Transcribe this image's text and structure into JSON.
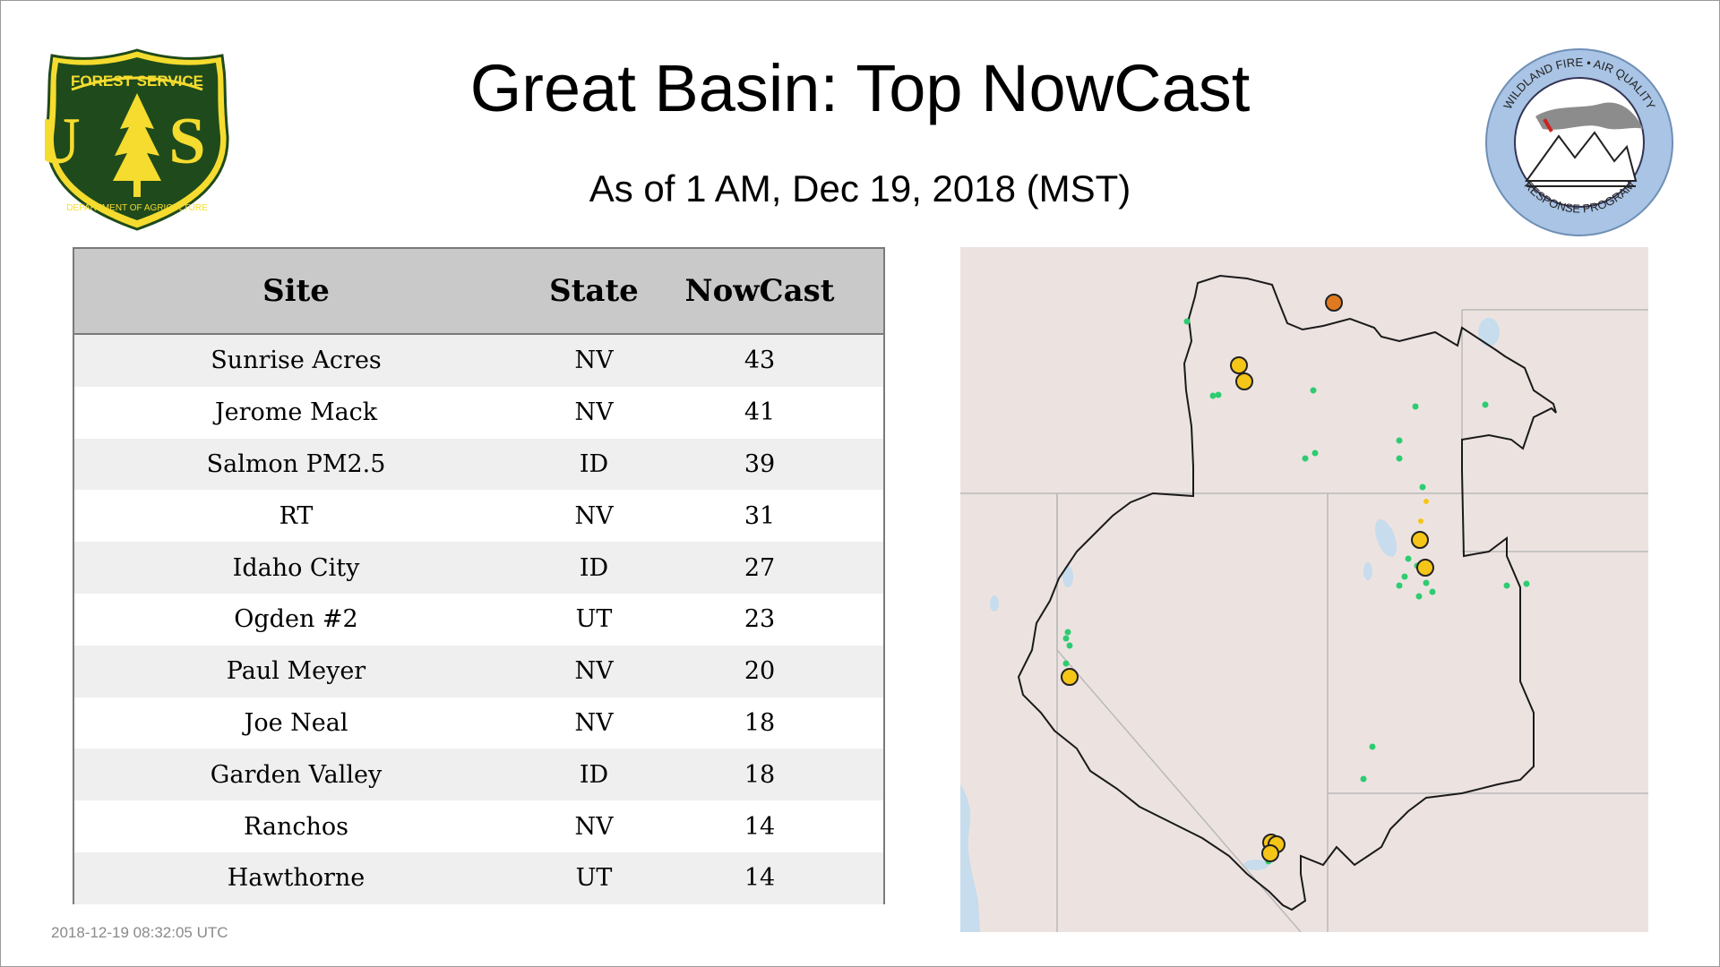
{
  "header": {
    "title": "Great Basin: Top NowCast",
    "subtitle": "As of  1 AM, Dec 19, 2018 (MST)"
  },
  "logos": {
    "forest_service": {
      "top_text": "FOREST SERVICE",
      "letters": "U S",
      "bottom_text": "DEPARTMENT OF AGRICULTURE",
      "colors": {
        "shield": "#1f4a1c",
        "gold": "#f5dc2e"
      }
    },
    "wildland_fire": {
      "top_text": "WILDLAND FIRE • AIR QUALITY",
      "bottom_text": "RESPONSE PROGRAM",
      "colors": {
        "ring": "#a9c4e4",
        "smoke": "#8c8c8c",
        "flag": "#cc2222"
      }
    }
  },
  "table": {
    "columns": [
      "Site",
      "State",
      "NowCast"
    ],
    "rows": [
      {
        "site": "Sunrise Acres",
        "state": "NV",
        "nowcast": "43"
      },
      {
        "site": "Jerome Mack",
        "state": "NV",
        "nowcast": "41"
      },
      {
        "site": "Salmon PM2.5",
        "state": "ID",
        "nowcast": "39"
      },
      {
        "site": "RT",
        "state": "NV",
        "nowcast": "31"
      },
      {
        "site": "Idaho City",
        "state": "ID",
        "nowcast": "27"
      },
      {
        "site": "Ogden #2",
        "state": "UT",
        "nowcast": "23"
      },
      {
        "site": "Paul Meyer",
        "state": "NV",
        "nowcast": "20"
      },
      {
        "site": "Joe Neal",
        "state": "NV",
        "nowcast": "18"
      },
      {
        "site": "Garden Valley",
        "state": "ID",
        "nowcast": "18"
      },
      {
        "site": "Ranchos",
        "state": "NV",
        "nowcast": "14"
      },
      {
        "site": "Hawthorne",
        "state": "UT",
        "nowcast": "14"
      }
    ]
  },
  "timestamp": "2018-12-19 08:32:05 UTC",
  "map": {
    "colors": {
      "land": "#ece3e1",
      "water": "#c7dcec",
      "boundary": "#1a1a1a",
      "state_lines": "#b9b9b9",
      "good": "#2ecc71",
      "moderate": "#f5c518",
      "usg": "#e07a20"
    },
    "legend_levels": [
      "good",
      "moderate",
      "usg"
    ]
  }
}
